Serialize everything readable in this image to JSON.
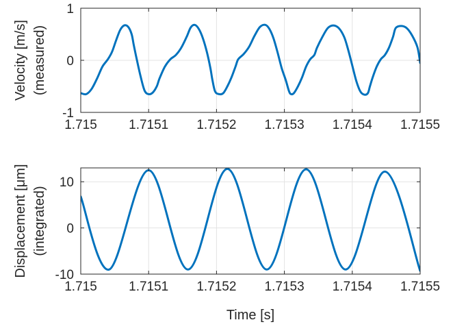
{
  "chart_data": [
    {
      "type": "line",
      "ylabel": [
        "Velocity [m/s]",
        "(measured)"
      ],
      "xlabel": "",
      "xlim": [
        1.715,
        1.7155
      ],
      "ylim": [
        -1,
        1
      ],
      "grid": true,
      "series_color": "#0072bd",
      "xticks": [
        1.715,
        1.7151,
        1.7152,
        1.7153,
        1.7154,
        1.7155
      ],
      "xtick_labels": [
        "1.715",
        "1.7151",
        "1.7152",
        "1.7153",
        "1.7154",
        "1.7155"
      ],
      "yticks": [
        -1,
        0,
        1
      ],
      "ytick_labels": [
        "-1",
        "0",
        "1"
      ],
      "series": [
        {
          "x": [
            1.715,
            1.715008,
            1.715016,
            1.715024,
            1.715032,
            1.71504,
            1.715046,
            1.715052,
            1.715058,
            1.715064,
            1.71507,
            1.715075,
            1.715078,
            1.715082,
            1.715088,
            1.715094,
            1.7151,
            1.715106,
            1.715112,
            1.715116,
            1.715124,
            1.715132,
            1.71514,
            1.715148,
            1.715156,
            1.715162,
            1.715168,
            1.715174,
            1.71518,
            1.715186,
            1.715191,
            1.715194,
            1.715198,
            1.715204,
            1.71521,
            1.715216,
            1.715222,
            1.715228,
            1.715232,
            1.71524,
            1.715248,
            1.715256,
            1.715264,
            1.715272,
            1.715278,
            1.715284,
            1.71529,
            1.715296,
            1.715302,
            1.715307,
            1.71531,
            1.715314,
            1.71532,
            1.715326,
            1.715332,
            1.715338,
            1.715344,
            1.715348,
            1.715356,
            1.715364,
            1.715372,
            1.71538,
            1.715388,
            1.715394,
            1.7154,
            1.715406,
            1.715412,
            1.715418,
            1.715423,
            1.715426,
            1.71543,
            1.715436,
            1.715442,
            1.715448,
            1.715454,
            1.71546,
            1.715464,
            1.715472,
            1.71548,
            1.715488,
            1.715496,
            1.7155
          ],
          "y": [
            -0.63,
            -0.65,
            -0.55,
            -0.35,
            -0.12,
            0.02,
            0.16,
            0.38,
            0.58,
            0.67,
            0.64,
            0.5,
            0.3,
            0.05,
            -0.3,
            -0.58,
            -0.65,
            -0.62,
            -0.5,
            -0.35,
            -0.12,
            0.02,
            0.1,
            0.24,
            0.45,
            0.63,
            0.68,
            0.6,
            0.42,
            0.15,
            -0.15,
            -0.38,
            -0.6,
            -0.65,
            -0.63,
            -0.5,
            -0.33,
            -0.12,
            0.02,
            0.12,
            0.26,
            0.47,
            0.64,
            0.68,
            0.6,
            0.42,
            0.15,
            -0.15,
            -0.38,
            -0.6,
            -0.65,
            -0.63,
            -0.5,
            -0.33,
            -0.12,
            0.02,
            0.1,
            0.24,
            0.45,
            0.62,
            0.67,
            0.62,
            0.45,
            0.2,
            -0.1,
            -0.4,
            -0.6,
            -0.66,
            -0.63,
            -0.5,
            -0.33,
            -0.12,
            0.02,
            0.1,
            0.24,
            0.45,
            0.62,
            0.66,
            0.62,
            0.48,
            0.25,
            -0.05
          ]
        }
      ]
    },
    {
      "type": "line",
      "ylabel": [
        "Displacement [μm]",
        "(integrated)"
      ],
      "xlabel": "Time [s]",
      "xlim": [
        1.715,
        1.7155
      ],
      "ylim": [
        -10,
        13
      ],
      "grid": true,
      "series_color": "#0072bd",
      "xticks": [
        1.715,
        1.7151,
        1.7152,
        1.7153,
        1.7154,
        1.7155
      ],
      "xtick_labels": [
        "1.715",
        "1.7151",
        "1.7152",
        "1.7153",
        "1.7154",
        "1.7155"
      ],
      "yticks": [
        -10,
        0,
        10
      ],
      "ytick_labels": [
        "-10",
        "0",
        "10"
      ],
      "series": [
        {
          "x": [
            1.715,
            1.715042,
            1.7151,
            1.715158,
            1.715216,
            1.715274,
            1.715332,
            1.71539,
            1.715448,
            1.7155
          ],
          "y": [
            6.8,
            -9.0,
            12.5,
            -9.0,
            12.8,
            -9.0,
            12.7,
            -9.0,
            12.2,
            -9.3
          ]
        }
      ]
    }
  ]
}
